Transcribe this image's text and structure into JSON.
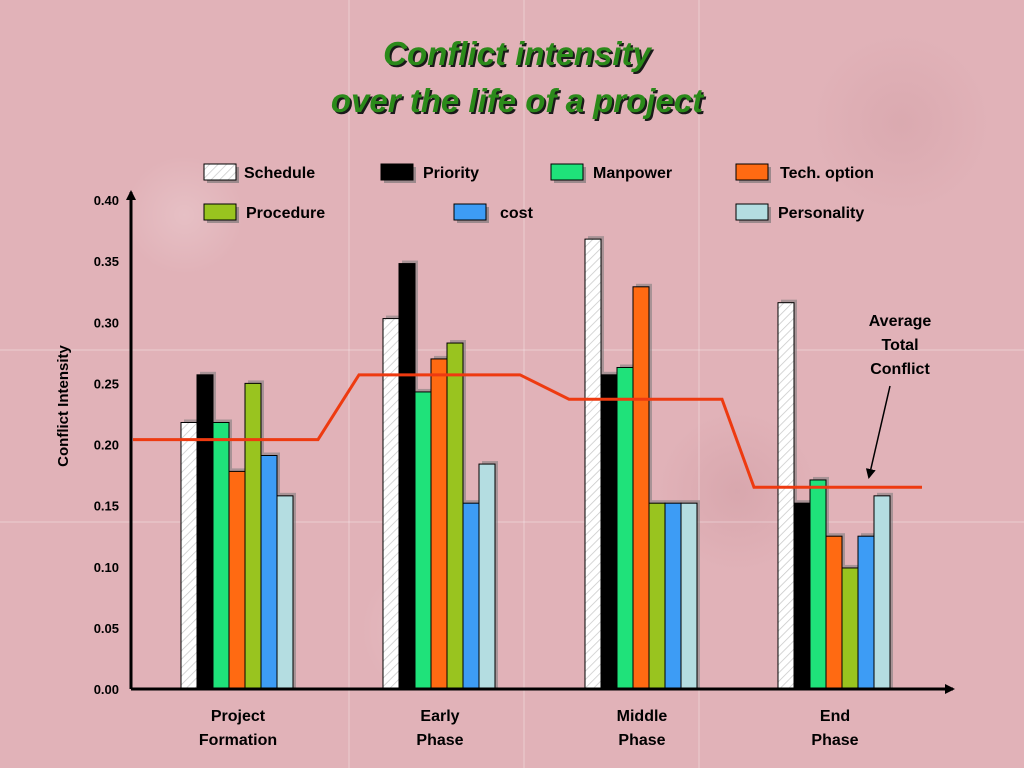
{
  "chart_data": {
    "type": "bar",
    "title": [
      "Conflict intensity",
      "over the life of a project"
    ],
    "ylabel": "Conflict Intensity",
    "xlabel": "",
    "ylim": [
      0,
      0.4
    ],
    "yticks": [
      "0.00",
      "0.05",
      "0.10",
      "0.15",
      "0.20",
      "0.25",
      "0.30",
      "0.35",
      "0.40"
    ],
    "categories": [
      [
        "Project",
        "Formation"
      ],
      [
        "Early",
        "Phase"
      ],
      [
        "Middle",
        "Phase"
      ],
      [
        "End",
        "Phase"
      ]
    ],
    "series": [
      {
        "name": "Schedule",
        "color": "#ffffff",
        "pattern": "hatch",
        "values": [
          0.218,
          0.303,
          0.368,
          0.316
        ]
      },
      {
        "name": "Priority",
        "color": "#000000",
        "values": [
          0.257,
          0.348,
          0.257,
          0.152
        ]
      },
      {
        "name": "Manpower",
        "color": "#1fe27a",
        "values": [
          0.218,
          0.243,
          0.263,
          0.171
        ]
      },
      {
        "name": "Tech. option",
        "color": "#ff6a12",
        "values": [
          0.178,
          0.27,
          0.329,
          0.125
        ]
      },
      {
        "name": "Procedure",
        "color": "#99c41f",
        "values": [
          0.25,
          0.283,
          0.152,
          0.099
        ]
      },
      {
        "name": "cost",
        "color": "#3d9cf5",
        "values": [
          0.191,
          0.152,
          0.152,
          0.125
        ]
      },
      {
        "name": "Personality",
        "color": "#b4dde1",
        "values": [
          0.158,
          0.184,
          0.152,
          0.158
        ]
      }
    ],
    "average_line": {
      "label": [
        "Average",
        "Total",
        "Conflict"
      ],
      "color": "#ee3a10",
      "values": [
        0.204,
        0.257,
        0.237,
        0.165
      ]
    },
    "legend_placement": "top",
    "grid": false
  }
}
